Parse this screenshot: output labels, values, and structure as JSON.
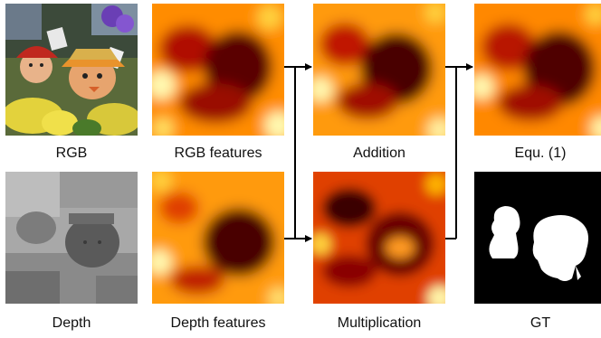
{
  "captions": {
    "rgb": "RGB",
    "rgb_features": "RGB features",
    "addition": "Addition",
    "equation": "Equ. (1)",
    "depth": "Depth",
    "depth_features": "Depth features",
    "multiplication": "Multiplication",
    "gt": "GT"
  },
  "colors": {
    "heat_hot": "#fff9b0",
    "heat_warm": "#ffb400",
    "heat_mid": "#f03c00",
    "heat_dark": "#8a0000",
    "heat_darkest": "#3a0000",
    "arrow": "#000000"
  }
}
